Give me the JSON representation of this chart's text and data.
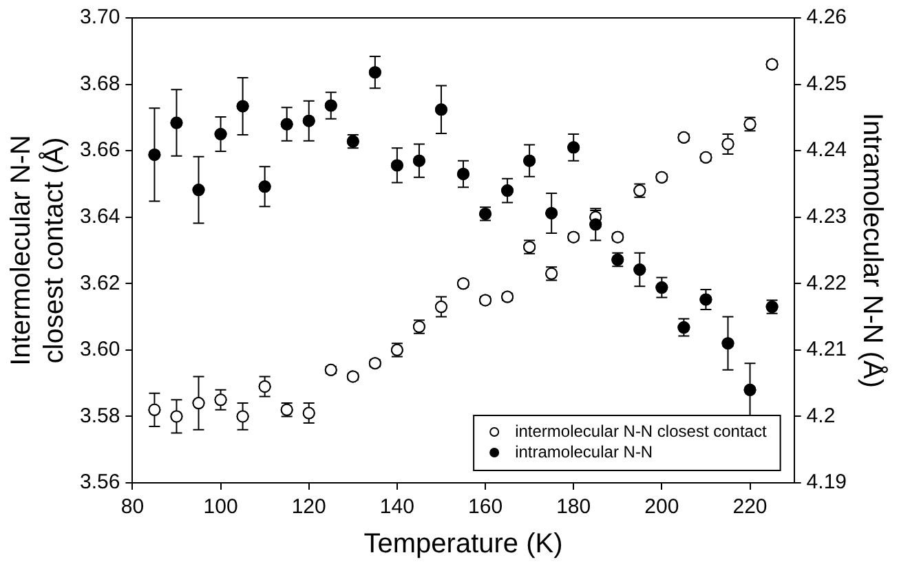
{
  "chart_data": {
    "type": "scatter",
    "xlabel": "Temperature (K)",
    "ylabel": "Intermolecular N-N\nclosest contact (Å)",
    "y2label": "Intramolecular N-N (Å)",
    "x": [
      85,
      90,
      95,
      100,
      105,
      110,
      115,
      120,
      125,
      130,
      135,
      140,
      145,
      150,
      155,
      160,
      165,
      170,
      175,
      180,
      185,
      190,
      195,
      200,
      205,
      210,
      215,
      220,
      225
    ],
    "series": [
      {
        "name": "intermolecular N-N closest contact",
        "color": "#ffffff",
        "axis": "y",
        "values": [
          3.582,
          3.58,
          3.584,
          3.585,
          3.58,
          3.589,
          3.582,
          3.581,
          3.594,
          3.592,
          3.596,
          3.6,
          3.607,
          3.613,
          3.62,
          3.615,
          3.616,
          3.631,
          3.623,
          3.634,
          3.64,
          3.634,
          3.648,
          3.652,
          3.664,
          3.658,
          3.662,
          3.668,
          3.686
        ],
        "errors": [
          0.005,
          0.005,
          0.008,
          0.003,
          0.004,
          0.003,
          0.002,
          0.003,
          0.001,
          0.001,
          0.001,
          0.002,
          0.002,
          0.003,
          0.001,
          0.001,
          0.001,
          0.002,
          0.002,
          0.001,
          0.002,
          0.001,
          0.002,
          0.001,
          0.001,
          0.001,
          0.003,
          0.002,
          0.001
        ]
      },
      {
        "name": "intramolecular N-N",
        "color": "#000000",
        "axis": "y2",
        "values": [
          4.2394,
          4.2442,
          4.2341,
          4.2425,
          4.2467,
          4.2346,
          4.244,
          4.2445,
          4.2468,
          4.2414,
          4.2518,
          4.2378,
          4.2385,
          4.2462,
          4.2365,
          4.2305,
          4.234,
          4.2385,
          4.2306,
          4.2405,
          4.2289,
          4.2236,
          4.2221,
          4.2194,
          4.2134,
          4.2176,
          4.211,
          4.204,
          4.2165
        ],
        "errors": [
          0.007,
          0.005,
          0.005,
          0.0026,
          0.0043,
          0.003,
          0.0025,
          0.003,
          0.002,
          0.001,
          0.0024,
          0.0026,
          0.0025,
          0.0036,
          0.002,
          0.001,
          0.0018,
          0.0024,
          0.003,
          0.002,
          0.0024,
          0.001,
          0.0025,
          0.0015,
          0.0013,
          0.0015,
          0.004,
          0.004,
          0.001
        ]
      }
    ],
    "xlim": [
      80,
      230
    ],
    "xticks": [
      80,
      100,
      120,
      140,
      160,
      180,
      200,
      220
    ],
    "ylim": [
      3.56,
      3.7
    ],
    "yticks": [
      {
        "value": 3.56,
        "label": "3.56"
      },
      {
        "value": 3.58,
        "label": "3.58"
      },
      {
        "value": 3.6,
        "label": "3.60"
      },
      {
        "value": 3.62,
        "label": "3.62"
      },
      {
        "value": 3.64,
        "label": "3.64"
      },
      {
        "value": 3.66,
        "label": "3.66"
      },
      {
        "value": 3.68,
        "label": "3.68"
      },
      {
        "value": 3.7,
        "label": "3.70"
      }
    ],
    "y2lim": [
      4.19,
      4.26
    ],
    "y2ticks": [
      4.19,
      4.2,
      4.21,
      4.22,
      4.23,
      4.24,
      4.25,
      4.26
    ],
    "marker": "circle",
    "grid": false,
    "legend": "bottom right"
  }
}
